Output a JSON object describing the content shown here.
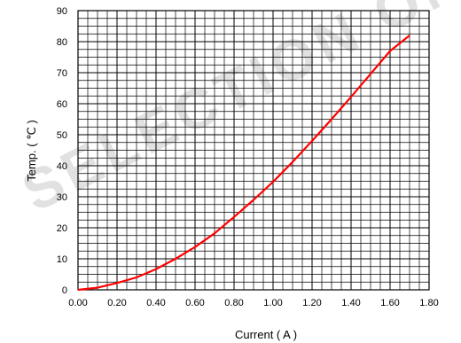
{
  "watermark": {
    "text": "SELECTION ON",
    "color": "#c8c8c8"
  },
  "chart_data": {
    "type": "line",
    "title": "",
    "xlabel": "Current ( A )",
    "ylabel": "Temp. ( ℃ )",
    "xlim": [
      0.0,
      1.8
    ],
    "ylim": [
      0,
      90
    ],
    "x_ticks": [
      "0.00",
      "0.20",
      "0.40",
      "0.60",
      "0.80",
      "1.00",
      "1.20",
      "1.40",
      "1.60",
      "1.80"
    ],
    "y_ticks": [
      "0",
      "10",
      "20",
      "30",
      "40",
      "50",
      "60",
      "70",
      "80",
      "90"
    ],
    "grid": true,
    "minor_x_step": 0.05,
    "minor_y_step": 2.5,
    "series": [
      {
        "color": "#ff0000",
        "x": [
          0.0,
          0.1,
          0.2,
          0.3,
          0.4,
          0.5,
          0.6,
          0.7,
          0.8,
          0.9,
          1.0,
          1.1,
          1.2,
          1.3,
          1.4,
          1.5,
          1.6,
          1.7
        ],
        "y": [
          0.0,
          0.7,
          2.2,
          4.0,
          6.7,
          10.0,
          13.8,
          18.2,
          23.5,
          29.0,
          34.8,
          41.2,
          48.0,
          55.0,
          62.2,
          69.6,
          77.0,
          82.0
        ]
      }
    ]
  }
}
